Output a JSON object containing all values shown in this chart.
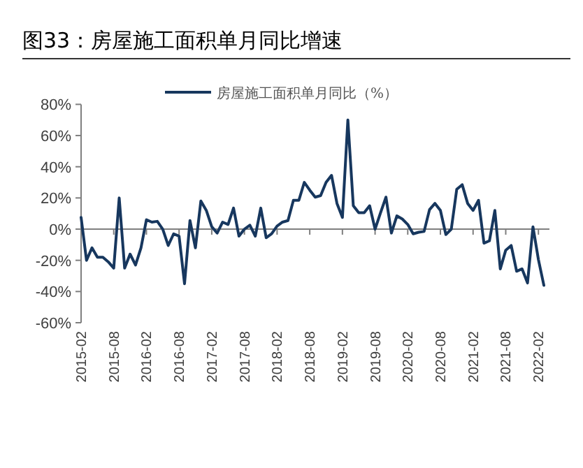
{
  "chart_data": {
    "type": "line",
    "title": "图33：房屋施工面积单月同比增速",
    "categories": [
      "2015-02",
      null,
      null,
      null,
      null,
      null,
      "2015-08",
      null,
      null,
      null,
      null,
      null,
      "2016-02",
      null,
      null,
      null,
      null,
      null,
      "2016-08",
      null,
      null,
      null,
      null,
      null,
      "2017-02",
      null,
      null,
      null,
      null,
      null,
      "2017-08",
      null,
      null,
      null,
      null,
      null,
      "2018-02",
      null,
      null,
      null,
      null,
      null,
      "2018-08",
      null,
      null,
      null,
      null,
      null,
      "2019-02",
      null,
      null,
      null,
      null,
      null,
      "2019-08",
      null,
      null,
      null,
      null,
      null,
      "2020-02",
      null,
      null,
      null,
      null,
      null,
      "2020-08",
      null,
      null,
      null,
      null,
      null,
      "2021-02",
      null,
      null,
      null,
      null,
      null,
      "2021-08",
      null,
      null,
      null,
      null,
      null,
      "2022-02",
      null
    ],
    "series": [
      {
        "name": "房屋施工面积单月同比（%）",
        "color": "#17375e",
        "values": [
          7.5,
          -20,
          -12,
          -18,
          -18,
          -21,
          -25,
          20,
          -25,
          -16,
          -23,
          -12,
          6,
          4.5,
          5,
          0,
          -10.5,
          -3,
          -4.5,
          -35,
          5.5,
          -12,
          18,
          12,
          1.5,
          -2.5,
          4.5,
          3,
          13.5,
          -4.5,
          0,
          2.5,
          -4.5,
          13.5,
          -5.5,
          -3,
          2,
          4.5,
          5.5,
          18.5,
          18.5,
          30,
          25,
          20.5,
          21.5,
          30,
          34.5,
          16.5,
          7.5,
          70,
          15,
          10.5,
          10.5,
          15,
          0,
          10.5,
          20.5,
          -2.5,
          8.5,
          6.5,
          3,
          -3,
          -2,
          -1.5,
          12.5,
          16.5,
          12,
          -3.5,
          0,
          25.5,
          28.5,
          16.5,
          12,
          18.5,
          -9,
          -7.5,
          12,
          -25.5,
          -13.5,
          -10.5,
          -27,
          -25.5,
          -34.5,
          1.5,
          -19.5,
          -36
        ]
      }
    ],
    "ylim": [
      -60,
      80
    ],
    "yticks": [
      {
        "value": -60,
        "label": "-60%"
      },
      {
        "value": -40,
        "label": "-40%"
      },
      {
        "value": -20,
        "label": "-20%"
      },
      {
        "value": 0,
        "label": "0%"
      },
      {
        "value": 20,
        "label": "20%"
      },
      {
        "value": 40,
        "label": "40%"
      },
      {
        "value": 60,
        "label": "60%"
      },
      {
        "value": 80,
        "label": "80%"
      }
    ],
    "ref_lines": [
      {
        "axis": "y",
        "value": 0,
        "color": "#7f7f7f"
      }
    ],
    "legend": "top",
    "grid": false,
    "marker": "none",
    "line_style": "solid"
  }
}
